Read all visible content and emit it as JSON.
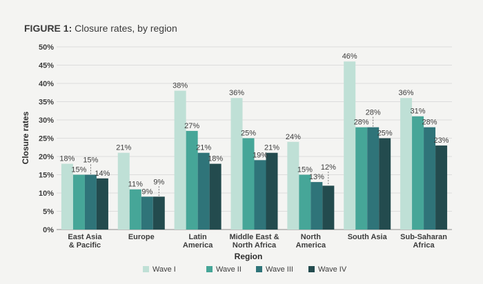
{
  "figure": {
    "label": "FIGURE 1:",
    "caption": "Closure rates, by region"
  },
  "chart_data": {
    "type": "bar",
    "title": "FIGURE 1: Closure rates, by region",
    "xlabel": "Region",
    "ylabel": "Closure rates",
    "ylim": [
      0,
      50
    ],
    "yticks": [
      "0%",
      "5%",
      "10%",
      "15%",
      "20%",
      "25%",
      "30%",
      "35%",
      "40%",
      "45%",
      "50%"
    ],
    "grid": true,
    "legend_position": "bottom-center",
    "categories": [
      [
        "East Asia",
        "& Pacific"
      ],
      [
        "Europe"
      ],
      [
        "Latin",
        "America"
      ],
      [
        "Middle East &",
        "North Africa"
      ],
      [
        "North",
        "America"
      ],
      [
        "South Asia"
      ],
      [
        "Sub-Saharan",
        "Africa"
      ]
    ],
    "series": [
      {
        "name": "Wave I",
        "color": "#bfe0d6",
        "values": [
          18,
          21,
          38,
          36,
          24,
          46,
          36
        ],
        "labels": [
          "18%",
          "21%",
          "38%",
          "36%",
          "24%",
          "46%",
          "36%"
        ]
      },
      {
        "name": "Wave II",
        "color": "#46a698",
        "values": [
          15,
          11,
          27,
          25,
          15,
          28,
          31
        ],
        "labels": [
          "15%",
          "11%",
          "27%",
          "25%",
          "15%",
          "28%",
          "31%"
        ]
      },
      {
        "name": "Wave III",
        "color": "#2f7479",
        "values": [
          15,
          9,
          21,
          19,
          13,
          28,
          28
        ],
        "labels": [
          "15%",
          "9%",
          "21%",
          "19%",
          "13%",
          "28%",
          "28%"
        ]
      },
      {
        "name": "Wave IV",
        "color": "#234b4e",
        "values": [
          14,
          9,
          18,
          21,
          12,
          25,
          23
        ],
        "labels": [
          "14%",
          "9%",
          "18%",
          "21%",
          "12%",
          "25%",
          "23%"
        ]
      }
    ]
  }
}
